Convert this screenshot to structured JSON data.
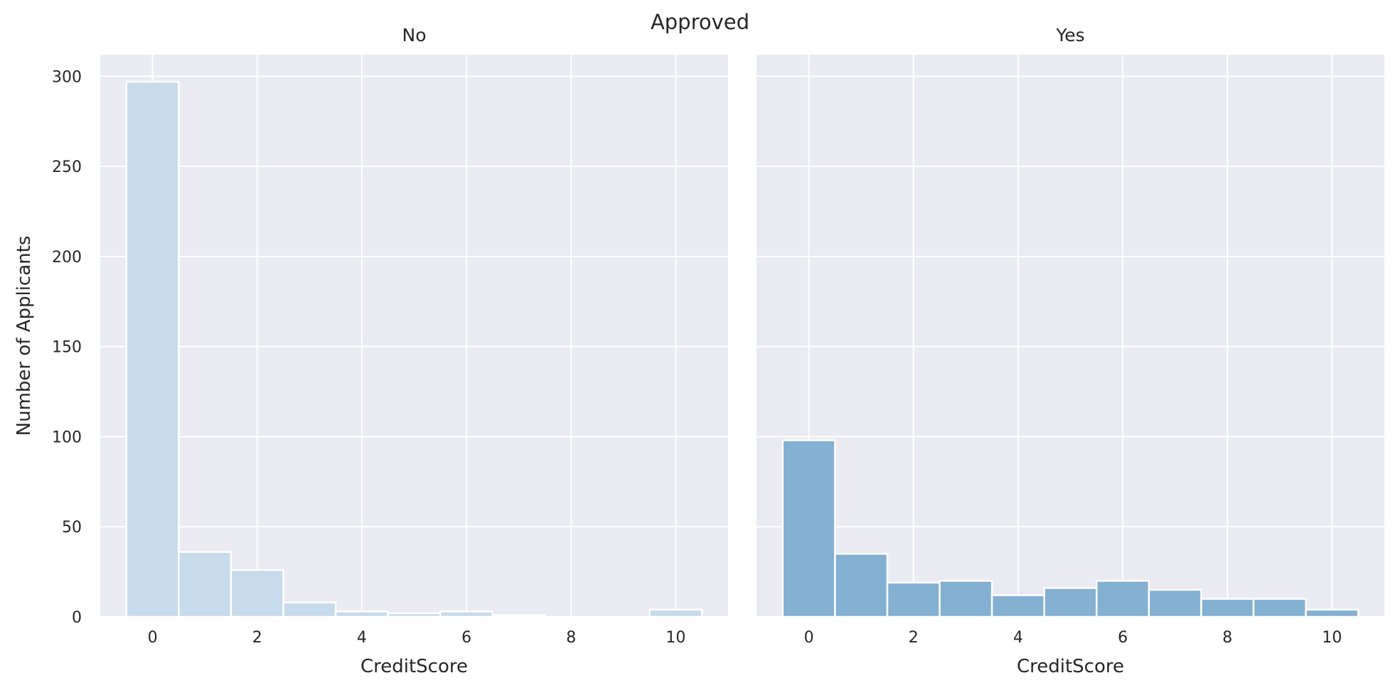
{
  "figure": {
    "suptitle": "Approved"
  },
  "colors": {
    "no": "#c6dbeb",
    "yes": "#84b0d2",
    "panel_bg": "#eaeaf2",
    "grid": "#ffffff",
    "text": "#262626"
  },
  "chart_data": [
    {
      "type": "bar",
      "panel_title": "No",
      "xlabel": "CreditScore",
      "ylabel": "Number of Applicants",
      "bin_width": 1,
      "x": [
        0,
        1,
        2,
        3,
        4,
        5,
        6,
        7,
        8,
        9,
        10
      ],
      "values": [
        297,
        36,
        26,
        8,
        3,
        2,
        3,
        1,
        0,
        0,
        4
      ],
      "xlim": [
        -1,
        11
      ],
      "ylim": [
        0,
        312
      ],
      "xticks": [
        "0",
        "2",
        "4",
        "6",
        "8",
        "10"
      ],
      "xtick_values": [
        0,
        2,
        4,
        6,
        8,
        10
      ],
      "yticks": [
        "0",
        "50",
        "100",
        "150",
        "200",
        "250",
        "300"
      ],
      "ytick_values": [
        0,
        50,
        100,
        150,
        200,
        250,
        300
      ],
      "grid": true,
      "color": "#c6dbeb"
    },
    {
      "type": "bar",
      "panel_title": "Yes",
      "xlabel": "CreditScore",
      "ylabel": "",
      "bin_width": 1,
      "x": [
        0,
        1,
        2,
        3,
        4,
        5,
        6,
        7,
        8,
        9,
        10
      ],
      "values": [
        98,
        35,
        19,
        20,
        12,
        16,
        20,
        15,
        10,
        10,
        4
      ],
      "xlim": [
        -1,
        11
      ],
      "ylim": [
        0,
        312
      ],
      "xticks": [
        "0",
        "2",
        "4",
        "6",
        "8",
        "10"
      ],
      "xtick_values": [
        0,
        2,
        4,
        6,
        8,
        10
      ],
      "yticks": [],
      "ytick_values": [
        0,
        50,
        100,
        150,
        200,
        250,
        300
      ],
      "grid": true,
      "color": "#84b0d2"
    }
  ]
}
